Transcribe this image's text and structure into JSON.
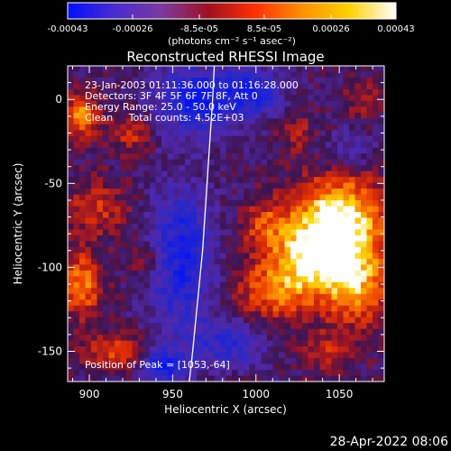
{
  "colorbar": {
    "tick_labels": [
      "-0.00043",
      "-0.00026",
      "-8.5e-05",
      "8.5e-05",
      "0.00026",
      "0.00043"
    ],
    "ticks": [
      -0.00043,
      -0.00026,
      -8.5e-05,
      8.5e-05,
      0.00026,
      0.00043
    ],
    "range": [
      -0.00043,
      0.00043
    ],
    "unit_label": "(photons cm⁻² s⁻¹ asec⁻²)",
    "colors": [
      "#0010ff",
      "#4a2bd0",
      "#7a3aa0",
      "#a01020",
      "#ff3000",
      "#ff9000",
      "#ffd000",
      "#ffffff"
    ]
  },
  "chart_data": {
    "type": "heatmap",
    "title": "Reconstructed RHESSI Image",
    "xlabel": "Heliocentric X (arcsec)",
    "ylabel": "Heliocentric Y (arcsec)",
    "xlim": [
      887,
      1077
    ],
    "ylim": [
      -168,
      20
    ],
    "x_tick_labels": [
      "900",
      "950",
      "1000",
      "1050"
    ],
    "x_ticks": [
      900,
      950,
      1000,
      1050
    ],
    "y_tick_labels": [
      "0",
      "-50",
      "-100",
      "-150"
    ],
    "y_ticks": [
      0,
      -50,
      -100,
      -150
    ],
    "peak": {
      "x": 1053,
      "y": -64
    },
    "limb": {
      "x": [
        960,
        962,
        965,
        968,
        970,
        972,
        974,
        975
      ],
      "y": [
        -168,
        -150,
        -120,
        -90,
        -60,
        -30,
        0,
        20
      ]
    },
    "annotations": [
      "23-Jan-2003 01:11:36.000 to 01:16:28.000",
      "Detectors: 3F 4F 5F 6F 7F 8F, Att 0",
      "Energy Range: 25.0 - 50.0 keV",
      "Clean     Total counts: 4.52E+03",
      "Position of Peak = [1053,-64]"
    ],
    "sources": [
      {
        "x": 1050,
        "y": -70,
        "sx": 20,
        "sy": 18,
        "a": 1.0
      },
      {
        "x": 1035,
        "y": -95,
        "sx": 18,
        "sy": 16,
        "a": 0.85
      },
      {
        "x": 1060,
        "y": -110,
        "sx": 14,
        "sy": 18,
        "a": 0.7
      },
      {
        "x": 1010,
        "y": -115,
        "sx": 16,
        "sy": 14,
        "a": 0.55
      },
      {
        "x": 1005,
        "y": -75,
        "sx": 10,
        "sy": 10,
        "a": 0.45
      },
      {
        "x": 895,
        "y": -10,
        "sx": 8,
        "sy": 9,
        "a": 0.75
      },
      {
        "x": 925,
        "y": -20,
        "sx": 8,
        "sy": 8,
        "a": 0.45
      },
      {
        "x": 895,
        "y": -110,
        "sx": 9,
        "sy": 14,
        "a": 0.7
      },
      {
        "x": 905,
        "y": -65,
        "sx": 14,
        "sy": 12,
        "a": 0.4
      },
      {
        "x": 915,
        "y": -150,
        "sx": 12,
        "sy": 8,
        "a": 0.55
      },
      {
        "x": 935,
        "y": -95,
        "sx": 8,
        "sy": 8,
        "a": 0.35
      },
      {
        "x": 1040,
        "y": -150,
        "sx": 10,
        "sy": 8,
        "a": 0.35
      },
      {
        "x": 1065,
        "y": 0,
        "sx": 8,
        "sy": 8,
        "a": 0.3
      },
      {
        "x": 1025,
        "y": -20,
        "sx": 8,
        "sy": 8,
        "a": 0.3
      },
      {
        "x": 965,
        "y": 0,
        "sx": 18,
        "sy": 14,
        "a": -0.8
      },
      {
        "x": 955,
        "y": -95,
        "sx": 14,
        "sy": 30,
        "a": -0.75
      },
      {
        "x": 1000,
        "y": 5,
        "sx": 12,
        "sy": 10,
        "a": -0.6
      },
      {
        "x": 985,
        "y": -145,
        "sx": 16,
        "sy": 10,
        "a": -0.55
      },
      {
        "x": 945,
        "y": -160,
        "sx": 10,
        "sy": 8,
        "a": -0.7
      },
      {
        "x": 1055,
        "y": -30,
        "sx": 12,
        "sy": 8,
        "a": -0.35
      }
    ]
  },
  "timestamp": "28-Apr-2022 08:06"
}
